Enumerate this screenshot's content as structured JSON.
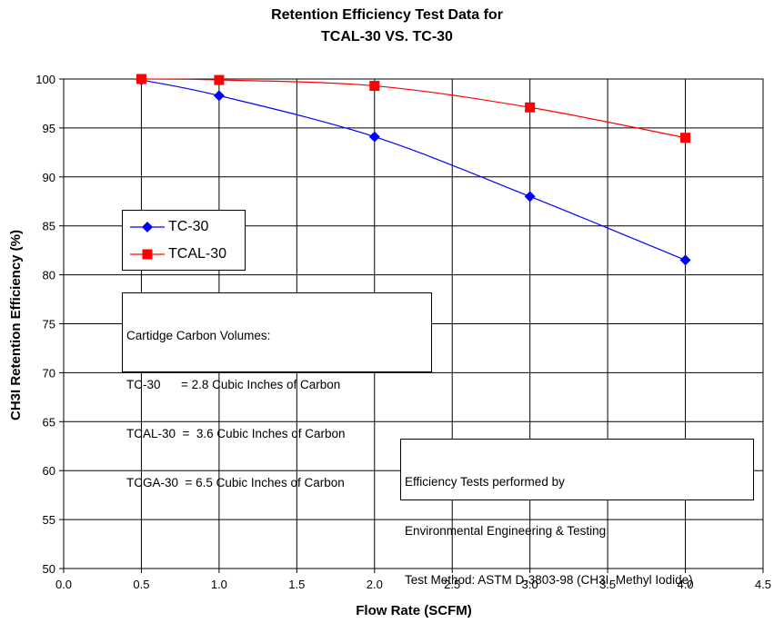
{
  "chart_data": {
    "type": "line",
    "title": [
      "Retention Efficiency Test Data for",
      "TCAL-30 VS. TC-30"
    ],
    "xlabel": "Flow Rate (SCFM)",
    "ylabel": "CH3I Retention Efficiency (%)",
    "xlim": [
      0.0,
      4.5
    ],
    "ylim": [
      50,
      100
    ],
    "xticks": [
      "0.0",
      "0.5",
      "1.0",
      "1.5",
      "2.0",
      "2.5",
      "3.0",
      "3.5",
      "4.0",
      "4.5"
    ],
    "yticks": [
      "50",
      "55",
      "60",
      "65",
      "70",
      "75",
      "80",
      "85",
      "90",
      "95",
      "100"
    ],
    "grid": true,
    "legend_position": "left",
    "series": [
      {
        "name": "TC-30",
        "color": "#0000ff",
        "marker": "diamond",
        "x": [
          0.5,
          1.0,
          2.0,
          3.0,
          4.0
        ],
        "y": [
          99.9,
          98.3,
          94.1,
          88.0,
          81.5
        ]
      },
      {
        "name": "TCAL-30",
        "color": "#ff0000",
        "marker": "square",
        "x": [
          0.5,
          1.0,
          2.0,
          3.0,
          4.0
        ],
        "y": [
          100.0,
          99.9,
          99.3,
          97.1,
          94.0
        ]
      }
    ],
    "annotations": {
      "volumes": [
        "Cartidge Carbon Volumes:",
        "TC-30      = 2.8 Cubic Inches of Carbon",
        "TCAL-30  =  3.6 Cubic Inches of Carbon",
        "TCGA-30  = 6.5 Cubic Inches of Carbon"
      ],
      "tests": [
        "Efficiency Tests performed by",
        "Environmental Engineering & Testing",
        "Test Method: ASTM D-3803-98 (CH3I, Methyl Iodide)"
      ]
    }
  }
}
